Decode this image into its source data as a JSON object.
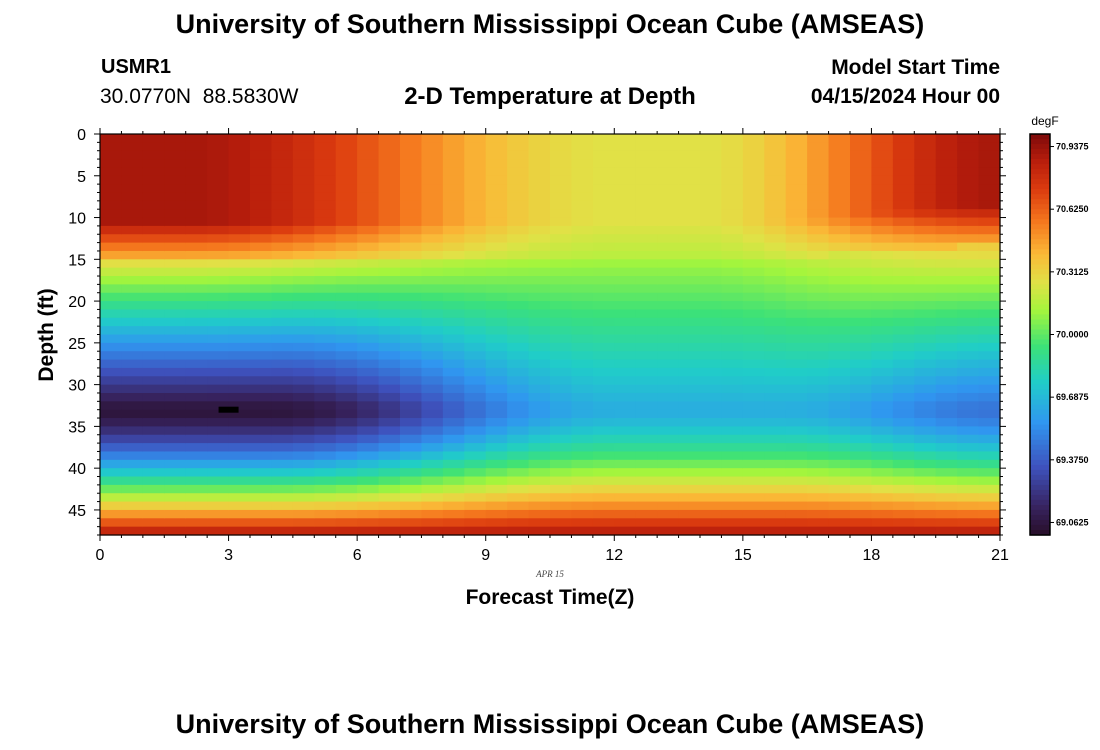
{
  "header": {
    "title": "University of Southern Mississippi Ocean Cube (AMSEAS)",
    "station": "USMR1",
    "coords": "30.0770N  88.5830W",
    "subtitle": "2-D Temperature at Depth",
    "model_start_label": "Model Start Time",
    "model_start_value": "04/15/2024 Hour 00"
  },
  "footer": {
    "title": "University of Southern Mississippi Ocean Cube (AMSEAS)"
  },
  "chart_data": {
    "type": "heatmap",
    "title": "2-D Temperature at Depth",
    "xlabel": "Forecast Time(Z)",
    "ylabel": "Depth (ft)",
    "date_label": "APR 15",
    "xlim": [
      0,
      21
    ],
    "ylim": [
      0,
      48
    ],
    "xticks": [
      0,
      3,
      6,
      9,
      12,
      15,
      18,
      21
    ],
    "yticks": [
      0,
      5,
      10,
      15,
      20,
      25,
      30,
      35,
      40,
      45
    ],
    "colorbar": {
      "unit": "degF",
      "range": [
        69.0,
        71.0
      ],
      "tick_values": [
        69.0625,
        69.375,
        69.6875,
        70.0,
        70.3125,
        70.625,
        70.9375
      ],
      "tick_labels": [
        "69.0625",
        "69.3750",
        "69.6875",
        "70.0000",
        "70.3125",
        "70.6250",
        "70.9375"
      ]
    },
    "field_description": "Warm surface layer (0-10 ft) early and late in the period, cool core near 33 ft around hour 3, warm bottom layer near 45 ft",
    "marker": {
      "label": "minimum",
      "time": 3,
      "depth": 33
    }
  }
}
